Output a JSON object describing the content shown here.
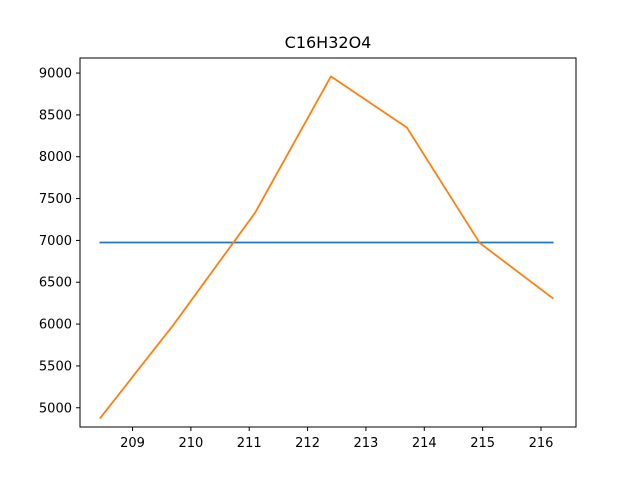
{
  "chart_data": {
    "type": "line",
    "title": "C16H32O4",
    "xlabel": "",
    "ylabel": "",
    "xlim": [
      208.1,
      216.6
    ],
    "ylim": [
      4770,
      9180
    ],
    "grid": false,
    "x_ticks": [
      209,
      210,
      211,
      212,
      213,
      214,
      215,
      216
    ],
    "y_ticks": [
      5000,
      5500,
      6000,
      6500,
      7000,
      7500,
      8000,
      8500,
      9000
    ],
    "series": [
      {
        "color": "#1f77b4",
        "x": [
          208.45,
          216.2
        ],
        "y": [
          6975,
          6975
        ]
      },
      {
        "color": "#ff7f0e",
        "x": [
          208.45,
          209.7,
          211.1,
          212.4,
          213.7,
          214.95,
          216.2
        ],
        "y": [
          4880,
          5990,
          7330,
          8960,
          8350,
          6970,
          6310
        ]
      }
    ]
  }
}
